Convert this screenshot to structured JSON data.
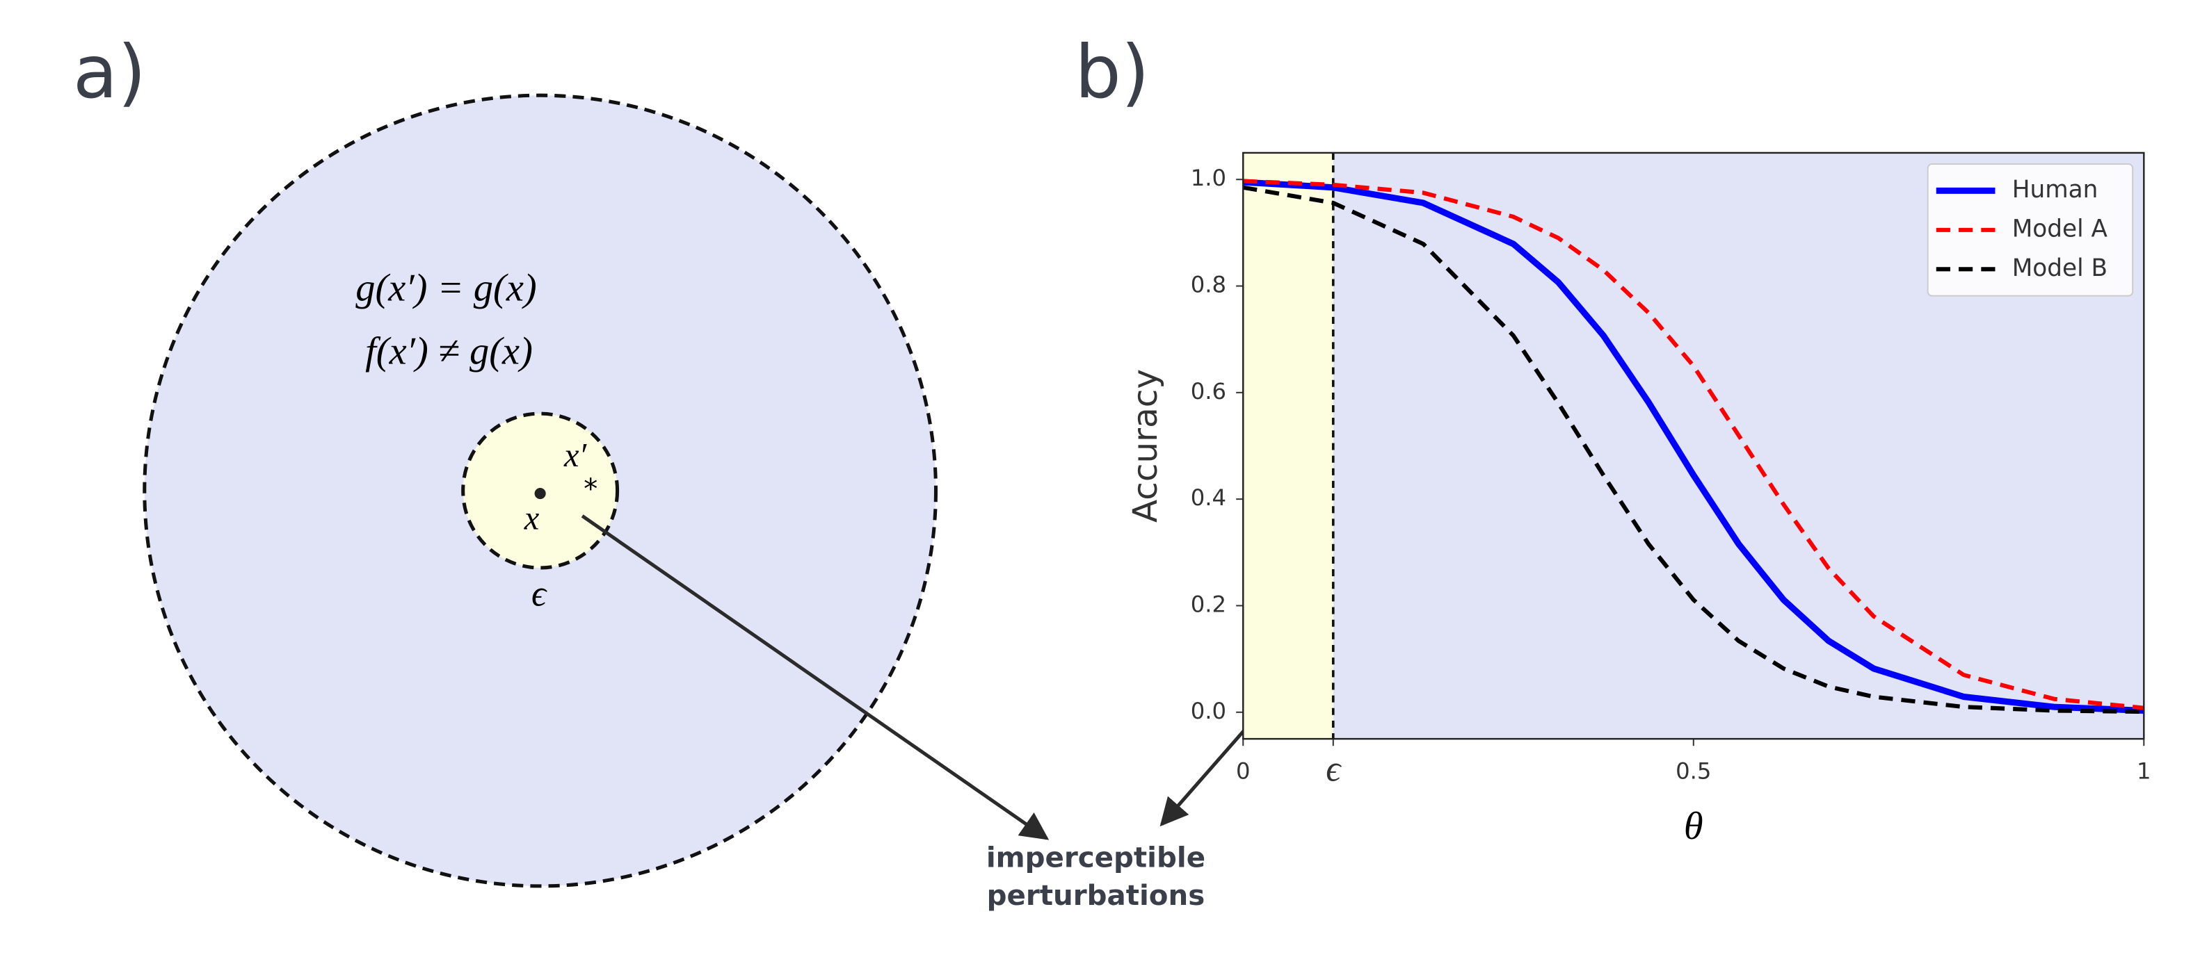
{
  "panel_a": {
    "label": "a)",
    "equations": [
      "g(x′) = g(x)",
      "f(x′) ≠ g(x)"
    ],
    "point_label": "x",
    "perturbed_label": "x′",
    "perturbed_marker": "*",
    "radius_label": "ϵ"
  },
  "annotation": [
    "imperceptible",
    "perturbations"
  ],
  "chart_data": {
    "type": "line",
    "panel_label": "b)",
    "x_label": "θ",
    "y_label": "Accuracy",
    "x": [
      0,
      0.1,
      0.2,
      0.3,
      0.35,
      0.4,
      0.45,
      0.5,
      0.55,
      0.6,
      0.65,
      0.7,
      0.8,
      0.9,
      1.0
    ],
    "series": [
      {
        "name": "Human",
        "color": "#0000ff",
        "style": "solid",
        "values": [
          0.995,
          0.985,
          0.956,
          0.879,
          0.807,
          0.707,
          0.582,
          0.445,
          0.316,
          0.211,
          0.134,
          0.082,
          0.029,
          0.01,
          0.003
        ]
      },
      {
        "name": "Model A",
        "color": "#ff0000",
        "style": "dashed",
        "values": [
          0.997,
          0.99,
          0.975,
          0.93,
          0.89,
          0.83,
          0.75,
          0.65,
          0.52,
          0.39,
          0.27,
          0.18,
          0.07,
          0.025,
          0.008
        ]
      },
      {
        "name": "Model B",
        "color": "#000000",
        "style": "dashed",
        "values": [
          0.985,
          0.956,
          0.879,
          0.707,
          0.58,
          0.445,
          0.316,
          0.211,
          0.134,
          0.082,
          0.048,
          0.029,
          0.01,
          0.003,
          0.001
        ]
      }
    ],
    "xlim": [
      0,
      1
    ],
    "ylim": [
      -0.05,
      1.05
    ],
    "xticks": [
      0,
      {
        "value": 0.1,
        "label": "ϵ"
      },
      0.5,
      1
    ],
    "yticks": [
      {
        "value": 0,
        "label": "0.0"
      },
      0.2,
      0.4,
      0.6,
      0.8,
      {
        "value": 1,
        "label": "1.0"
      }
    ],
    "legend": "upper right",
    "background": "#e1e3f7",
    "highlight_color": "#fdfde0"
  }
}
